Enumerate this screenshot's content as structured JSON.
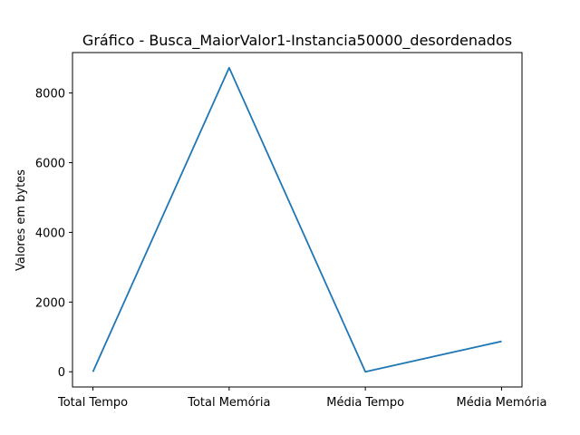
{
  "chart_data": {
    "type": "line",
    "title": "Gráfico - Busca_MaiorValor1-Instancia50000_desordenados",
    "xlabel": "",
    "ylabel": "Valores em bytes",
    "categories": [
      "Total Tempo",
      "Total Memória",
      "Média Tempo",
      "Média Memória"
    ],
    "series": [
      {
        "values": [
          0.5,
          8724,
          1e-05,
          872.4
        ]
      }
    ],
    "ylim": [
      -436,
      9160
    ],
    "yticks": [
      0,
      2000,
      4000,
      6000,
      8000
    ],
    "ytick_labels": [
      "0",
      "2000",
      "4000",
      "6000",
      "8000"
    ],
    "grid": false,
    "line_color": "#1f77b4"
  }
}
